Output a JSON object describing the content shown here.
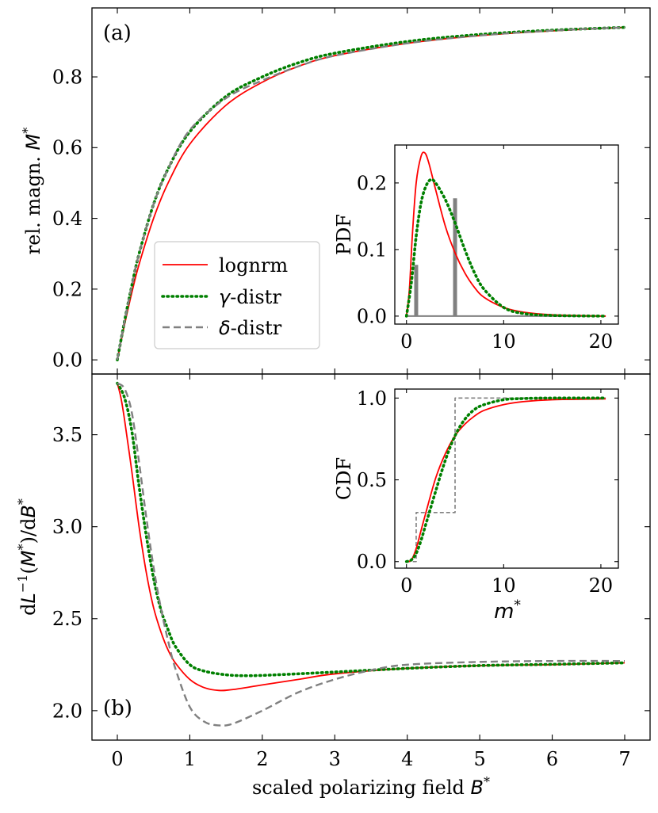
{
  "figure": {
    "xlabel": "scaled polarizing field",
    "xlabel_symbol": "B",
    "xlabel_sup": "*",
    "colors": {
      "lognrm": "#ff0000",
      "gamma": "#008000",
      "delta": "#808080",
      "axis": "#000000"
    }
  },
  "legend": {
    "entries": [
      {
        "key": "lognrm",
        "label": "lognrm",
        "style": "solid"
      },
      {
        "key": "gamma",
        "prefix": "γ",
        "label": "-distr",
        "style": "dotted"
      },
      {
        "key": "delta",
        "prefix": "δ",
        "label": "-distr",
        "style": "dashed"
      }
    ]
  },
  "chart_data": [
    {
      "id": "panel-a",
      "type": "line",
      "panel_label": "(a)",
      "ylabel_prefix": "rel. magn.",
      "ylabel_symbol": "M",
      "ylabel_sup": "*",
      "xlim": [
        -0.35,
        7.35
      ],
      "ylim": [
        -0.04,
        0.995
      ],
      "xticks": [
        0,
        1,
        2,
        3,
        4,
        5,
        6,
        7
      ],
      "yticks": [
        0.0,
        0.2,
        0.4,
        0.6,
        0.8
      ],
      "ytick_labels": [
        "0.0",
        "0.2",
        "0.4",
        "0.6",
        "0.8"
      ],
      "series": [
        {
          "name": "lognrm",
          "x": [
            0,
            0.1,
            0.2,
            0.3,
            0.5,
            0.7,
            1.0,
            1.5,
            2.0,
            2.5,
            3.0,
            4.0,
            5.0,
            6.0,
            7.0
          ],
          "y": [
            0,
            0.1,
            0.19,
            0.27,
            0.4,
            0.5,
            0.61,
            0.72,
            0.785,
            0.83,
            0.86,
            0.895,
            0.917,
            0.93,
            0.94
          ]
        },
        {
          "name": "gamma",
          "x": [
            0,
            0.1,
            0.2,
            0.3,
            0.5,
            0.7,
            1.0,
            1.5,
            2.0,
            2.5,
            3.0,
            4.0,
            5.0,
            6.0,
            7.0
          ],
          "y": [
            0,
            0.11,
            0.21,
            0.3,
            0.44,
            0.54,
            0.645,
            0.745,
            0.8,
            0.84,
            0.867,
            0.9,
            0.92,
            0.932,
            0.94
          ]
        },
        {
          "name": "delta",
          "x": [
            0,
            0.1,
            0.2,
            0.3,
            0.5,
            0.7,
            1.0,
            1.5,
            2.0,
            2.5,
            3.0,
            4.0,
            5.0,
            6.0,
            7.0
          ],
          "y": [
            0,
            0.11,
            0.21,
            0.3,
            0.44,
            0.54,
            0.65,
            0.74,
            0.79,
            0.83,
            0.86,
            0.895,
            0.917,
            0.931,
            0.94
          ]
        }
      ],
      "inset": {
        "type": "line",
        "ylabel": "PDF",
        "xlim": [
          -1.2,
          21.8
        ],
        "ylim": [
          -0.012,
          0.257
        ],
        "xticks": [
          0,
          10,
          20
        ],
        "yticks": [
          0.0,
          0.1,
          0.2
        ],
        "ytick_labels": [
          "0.0",
          "0.1",
          "0.2"
        ],
        "series": [
          {
            "name": "lognrm",
            "x": [
              0,
              0.3,
              0.6,
              1.0,
              1.5,
              1.9,
              2.3,
              3.0,
              4.0,
              5.0,
              6.0,
              7.0,
              8.0,
              10.0,
              12.0,
              15.0,
              20.5
            ],
            "y": [
              0,
              0.04,
              0.12,
              0.2,
              0.24,
              0.245,
              0.23,
              0.19,
              0.135,
              0.095,
              0.065,
              0.043,
              0.028,
              0.013,
              0.006,
              0.002,
              0.0
            ]
          },
          {
            "name": "gamma",
            "x": [
              0,
              0.5,
              1.0,
              1.5,
              2.0,
              2.5,
              3.0,
              4.0,
              5.0,
              6.0,
              7.0,
              8.0,
              10.0,
              12.0,
              15.0,
              20.5
            ],
            "y": [
              0,
              0.05,
              0.12,
              0.17,
              0.195,
              0.205,
              0.2,
              0.175,
              0.14,
              0.1,
              0.065,
              0.04,
              0.013,
              0.004,
              0.001,
              0.0
            ]
          }
        ],
        "stems": [
          {
            "name": "delta",
            "x": 1.0,
            "y": 0.077
          },
          {
            "name": "delta",
            "x": 5.0,
            "y": 0.177
          }
        ],
        "baseline": {
          "name": "delta",
          "x": [
            0,
            20.5
          ],
          "y": 0
        }
      }
    },
    {
      "id": "panel-b",
      "type": "line",
      "panel_label": "(b)",
      "ylabel_pre": "d",
      "ylabel_L": "L",
      "ylabel_L_sup": "−1",
      "ylabel_open": "(",
      "ylabel_M": "M",
      "ylabel_M_sup": "*",
      "ylabel_close": ")/d",
      "ylabel_B": "B",
      "ylabel_B_sup": "*",
      "xlim": [
        -0.35,
        7.35
      ],
      "ylim": [
        1.84,
        3.83
      ],
      "xticks": [
        0,
        1,
        2,
        3,
        4,
        5,
        6,
        7
      ],
      "xtick_labels": [
        "0",
        "1",
        "2",
        "3",
        "4",
        "5",
        "6",
        "7"
      ],
      "yticks": [
        2.0,
        2.5,
        3.0,
        3.5
      ],
      "ytick_labels": [
        "2.0",
        "2.5",
        "3.0",
        "3.5"
      ],
      "series": [
        {
          "name": "lognrm",
          "x": [
            0,
            0.05,
            0.1,
            0.2,
            0.3,
            0.4,
            0.5,
            0.6,
            0.7,
            0.8,
            1.0,
            1.2,
            1.4,
            1.6,
            2.0,
            2.5,
            3.0,
            4.0,
            5.0,
            6.0,
            7.0
          ],
          "y": [
            3.78,
            3.7,
            3.58,
            3.3,
            3.0,
            2.75,
            2.56,
            2.43,
            2.33,
            2.26,
            2.17,
            2.125,
            2.11,
            2.115,
            2.14,
            2.17,
            2.2,
            2.23,
            2.245,
            2.25,
            2.26
          ]
        },
        {
          "name": "gamma",
          "x": [
            0,
            0.1,
            0.2,
            0.3,
            0.4,
            0.5,
            0.6,
            0.7,
            0.8,
            1.0,
            1.2,
            1.5,
            1.8,
            2.2,
            3.0,
            4.0,
            5.0,
            6.0,
            7.0
          ],
          "y": [
            3.78,
            3.7,
            3.52,
            3.22,
            2.95,
            2.72,
            2.55,
            2.44,
            2.35,
            2.25,
            2.215,
            2.195,
            2.19,
            2.195,
            2.21,
            2.23,
            2.245,
            2.252,
            2.26
          ]
        },
        {
          "name": "delta",
          "x": [
            0,
            0.1,
            0.2,
            0.3,
            0.4,
            0.5,
            0.6,
            0.7,
            0.8,
            1.0,
            1.2,
            1.4,
            1.6,
            2.0,
            2.5,
            3.0,
            3.5,
            4.0,
            5.0,
            6.0,
            7.0
          ],
          "y": [
            3.78,
            3.75,
            3.62,
            3.35,
            3.05,
            2.78,
            2.56,
            2.38,
            2.23,
            2.02,
            1.94,
            1.92,
            1.93,
            2.0,
            2.1,
            2.17,
            2.22,
            2.25,
            2.265,
            2.27,
            2.27
          ]
        }
      ],
      "inset": {
        "type": "line",
        "ylabel": "CDF",
        "xlabel_symbol": "m",
        "xlabel_sup": "*",
        "xlim": [
          -1.2,
          21.8
        ],
        "ylim": [
          -0.04,
          1.055
        ],
        "xticks": [
          0,
          10,
          20
        ],
        "xtick_labels": [
          "0",
          "10",
          "20"
        ],
        "yticks": [
          0.0,
          0.5,
          1.0
        ],
        "ytick_labels": [
          "0.0",
          "0.5",
          "1.0"
        ],
        "series": [
          {
            "name": "lognrm",
            "x": [
              0,
              0.5,
              1.0,
              1.5,
              2.0,
              3.0,
              4.0,
              5.0,
              6.0,
              7.0,
              8.0,
              10.0,
              12.0,
              15.0,
              20.5
            ],
            "y": [
              0,
              0.01,
              0.08,
              0.19,
              0.3,
              0.51,
              0.66,
              0.77,
              0.84,
              0.89,
              0.925,
              0.96,
              0.978,
              0.99,
              0.995
            ]
          },
          {
            "name": "gamma",
            "x": [
              0,
              0.5,
              1.0,
              1.5,
              2.0,
              3.0,
              4.0,
              5.0,
              6.0,
              7.0,
              8.0,
              10.0,
              12.0,
              15.0,
              20.5
            ],
            "y": [
              0,
              0.01,
              0.05,
              0.13,
              0.23,
              0.43,
              0.62,
              0.77,
              0.87,
              0.93,
              0.96,
              0.99,
              0.997,
              1.0,
              1.0
            ]
          },
          {
            "name": "delta",
            "step": true,
            "x": [
              0,
              1.0,
              1.0,
              5.0,
              5.0,
              20.5
            ],
            "y": [
              0,
              0,
              0.3,
              0.3,
              1.0,
              1.0
            ]
          }
        ]
      }
    }
  ]
}
